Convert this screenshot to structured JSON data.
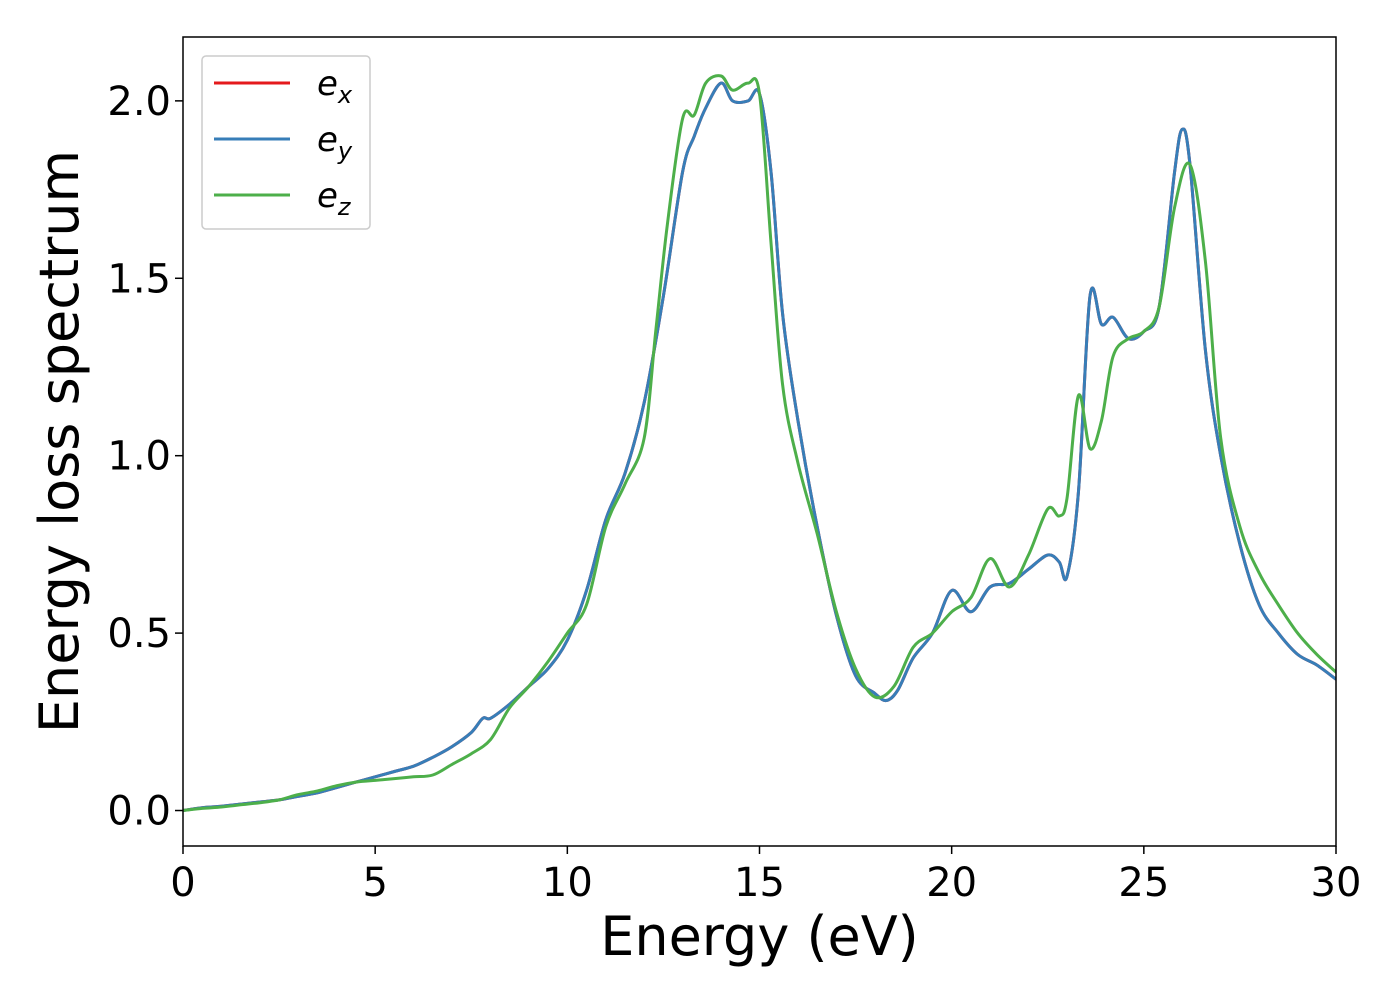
{
  "chart_data": {
    "type": "line",
    "title": "",
    "xlabel": "Energy (eV)",
    "ylabel": "Energy loss spectrum",
    "xlim": [
      0,
      30
    ],
    "ylim": [
      -0.1,
      2.18
    ],
    "xticks": [
      0,
      5,
      10,
      15,
      20,
      25,
      30
    ],
    "xtick_labels": [
      "0",
      "5",
      "10",
      "15",
      "20",
      "25",
      "30"
    ],
    "yticks": [
      0.0,
      0.5,
      1.0,
      1.5,
      2.0
    ],
    "ytick_labels": [
      "0.0",
      "0.5",
      "1.0",
      "1.5",
      "2.0"
    ],
    "grid": false,
    "legend_position": "top-left",
    "series": [
      {
        "name": "e",
        "subscript": "x",
        "color": "#e41a1c",
        "x": [
          0,
          0.5,
          1,
          1.5,
          2,
          2.5,
          3,
          3.5,
          4,
          4.5,
          5,
          5.5,
          6,
          6.5,
          7,
          7.5,
          7.8,
          8,
          8.5,
          9,
          9.5,
          10,
          10.5,
          11,
          11.5,
          12,
          12.5,
          13,
          13.3,
          13.6,
          14,
          14.3,
          14.7,
          15,
          15.3,
          15.6,
          16,
          16.5,
          17,
          17.5,
          18,
          18.3,
          18.6,
          19,
          19.5,
          20,
          20.5,
          21,
          21.5,
          22,
          22.5,
          22.8,
          23,
          23.3,
          23.6,
          23.9,
          24.2,
          24.6,
          25,
          25.4,
          25.8,
          26,
          26.2,
          26.6,
          27,
          27.5,
          28,
          28.5,
          29,
          29.5,
          30
        ],
        "y": [
          0.0,
          0.008,
          0.012,
          0.018,
          0.024,
          0.03,
          0.04,
          0.05,
          0.065,
          0.08,
          0.095,
          0.11,
          0.125,
          0.15,
          0.18,
          0.22,
          0.26,
          0.26,
          0.3,
          0.35,
          0.4,
          0.48,
          0.62,
          0.82,
          0.95,
          1.15,
          1.45,
          1.8,
          1.9,
          1.98,
          2.05,
          2.0,
          2.0,
          2.02,
          1.8,
          1.4,
          1.1,
          0.8,
          0.55,
          0.38,
          0.33,
          0.31,
          0.34,
          0.43,
          0.5,
          0.62,
          0.56,
          0.63,
          0.64,
          0.68,
          0.72,
          0.7,
          0.66,
          0.9,
          1.45,
          1.37,
          1.39,
          1.33,
          1.35,
          1.42,
          1.8,
          1.92,
          1.82,
          1.3,
          1.0,
          0.75,
          0.58,
          0.5,
          0.44,
          0.41,
          0.37
        ]
      },
      {
        "name": "e",
        "subscript": "y",
        "color": "#377eb8",
        "x": [
          0,
          0.5,
          1,
          1.5,
          2,
          2.5,
          3,
          3.5,
          4,
          4.5,
          5,
          5.5,
          6,
          6.5,
          7,
          7.5,
          7.8,
          8,
          8.5,
          9,
          9.5,
          10,
          10.5,
          11,
          11.5,
          12,
          12.5,
          13,
          13.3,
          13.6,
          14,
          14.3,
          14.7,
          15,
          15.3,
          15.6,
          16,
          16.5,
          17,
          17.5,
          18,
          18.3,
          18.6,
          19,
          19.5,
          20,
          20.5,
          21,
          21.5,
          22,
          22.5,
          22.8,
          23,
          23.3,
          23.6,
          23.9,
          24.2,
          24.6,
          25,
          25.4,
          25.8,
          26,
          26.2,
          26.6,
          27,
          27.5,
          28,
          28.5,
          29,
          29.5,
          30
        ],
        "y": [
          0.0,
          0.008,
          0.012,
          0.018,
          0.024,
          0.03,
          0.04,
          0.05,
          0.065,
          0.08,
          0.095,
          0.11,
          0.125,
          0.15,
          0.18,
          0.22,
          0.26,
          0.26,
          0.3,
          0.35,
          0.4,
          0.48,
          0.62,
          0.82,
          0.95,
          1.15,
          1.45,
          1.8,
          1.9,
          1.98,
          2.05,
          2.0,
          2.0,
          2.02,
          1.8,
          1.4,
          1.1,
          0.8,
          0.55,
          0.38,
          0.33,
          0.31,
          0.34,
          0.43,
          0.5,
          0.62,
          0.56,
          0.63,
          0.64,
          0.68,
          0.72,
          0.7,
          0.66,
          0.9,
          1.45,
          1.37,
          1.39,
          1.33,
          1.35,
          1.42,
          1.8,
          1.92,
          1.82,
          1.3,
          1.0,
          0.75,
          0.58,
          0.5,
          0.44,
          0.41,
          0.37
        ]
      },
      {
        "name": "e",
        "subscript": "z",
        "color": "#4daf4a",
        "x": [
          0,
          0.5,
          1,
          1.5,
          2,
          2.5,
          3,
          3.5,
          4,
          4.5,
          5,
          5.5,
          6,
          6.5,
          7,
          7.5,
          8,
          8.5,
          9,
          9.5,
          10,
          10.5,
          11,
          11.5,
          12,
          12.3,
          12.6,
          13,
          13.3,
          13.6,
          14,
          14.3,
          14.7,
          15,
          15.3,
          15.6,
          16,
          16.5,
          17,
          17.5,
          18,
          18.5,
          19,
          19.5,
          20,
          20.5,
          21,
          21.5,
          22,
          22.5,
          22.8,
          23,
          23.3,
          23.6,
          23.9,
          24.2,
          24.6,
          25,
          25.4,
          25.8,
          26.2,
          26.6,
          27,
          27.5,
          28,
          28.5,
          29,
          29.5,
          30
        ],
        "y": [
          0.0,
          0.006,
          0.01,
          0.016,
          0.022,
          0.03,
          0.045,
          0.055,
          0.07,
          0.08,
          0.085,
          0.09,
          0.095,
          0.1,
          0.13,
          0.16,
          0.2,
          0.29,
          0.35,
          0.42,
          0.5,
          0.58,
          0.8,
          0.92,
          1.05,
          1.35,
          1.65,
          1.95,
          1.96,
          2.05,
          2.07,
          2.03,
          2.05,
          2.02,
          1.6,
          1.2,
          0.98,
          0.78,
          0.56,
          0.4,
          0.32,
          0.35,
          0.46,
          0.5,
          0.56,
          0.6,
          0.71,
          0.63,
          0.72,
          0.85,
          0.83,
          0.88,
          1.17,
          1.02,
          1.1,
          1.28,
          1.33,
          1.35,
          1.42,
          1.7,
          1.82,
          1.55,
          1.05,
          0.8,
          0.67,
          0.58,
          0.5,
          0.44,
          0.39
        ]
      }
    ]
  }
}
